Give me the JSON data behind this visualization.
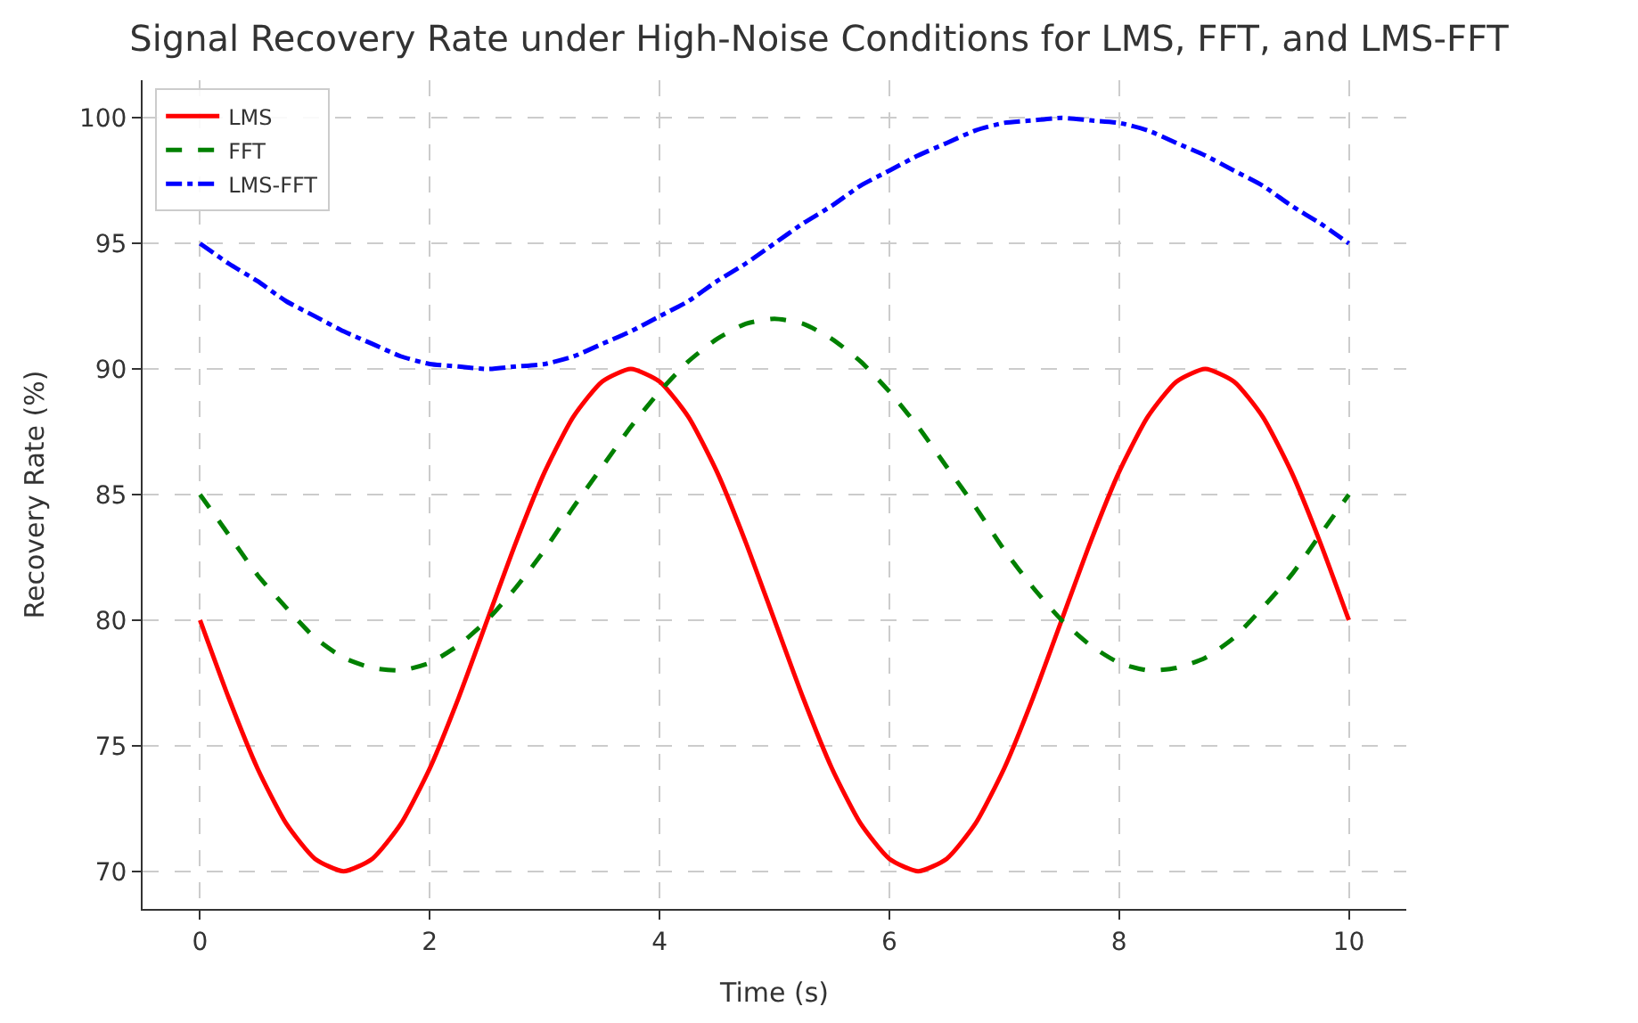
{
  "chart_data": {
    "type": "line",
    "title": "Signal Recovery Rate under High-Noise Conditions for LMS, FFT, and LMS-FFT",
    "xlabel": "Time (s)",
    "ylabel": "Recovery Rate (%)",
    "x": [
      0,
      0.25,
      0.5,
      0.75,
      1,
      1.25,
      1.5,
      1.75,
      2,
      2.25,
      2.5,
      2.75,
      3,
      3.25,
      3.5,
      3.75,
      4,
      4.25,
      4.5,
      4.75,
      5,
      5.25,
      5.5,
      5.75,
      6,
      6.25,
      6.5,
      6.75,
      7,
      7.25,
      7.5,
      7.75,
      8,
      8.25,
      8.5,
      8.75,
      9,
      9.25,
      9.5,
      9.75,
      10
    ],
    "series": [
      {
        "name": "LMS",
        "color": "#ff0000",
        "line_style": "solid",
        "values": [
          80,
          76.9,
          74.1,
          71.9,
          70.5,
          70,
          70.5,
          71.9,
          74.1,
          76.9,
          80,
          83.1,
          85.9,
          88.1,
          89.5,
          90,
          89.5,
          88.1,
          85.9,
          83.1,
          80,
          76.9,
          74.1,
          71.9,
          70.5,
          70,
          70.5,
          71.9,
          74.1,
          76.9,
          80,
          83.1,
          85.9,
          88.1,
          89.5,
          90,
          89.5,
          88.1,
          85.9,
          83.1,
          80
        ]
      },
      {
        "name": "FFT",
        "color": "#008000",
        "line_style": "dashed",
        "values": [
          85,
          83.4,
          81.8,
          80.5,
          79.3,
          78.5,
          78.1,
          78.0,
          78.3,
          79.0,
          80.0,
          81.3,
          82.8,
          84.5,
          86.1,
          87.7,
          89.1,
          90.3,
          91.2,
          91.8,
          92,
          91.8,
          91.2,
          90.3,
          89.1,
          87.7,
          86.1,
          84.5,
          82.8,
          81.3,
          80.0,
          79.0,
          78.3,
          78.0,
          78.1,
          78.5,
          79.3,
          80.5,
          81.8,
          83.4,
          85
        ]
      },
      {
        "name": "LMS-FFT",
        "color": "#0000ff",
        "line_style": "dashdot",
        "values": [
          95,
          94.2,
          93.5,
          92.7,
          92.1,
          91.5,
          91.0,
          90.5,
          90.2,
          90.1,
          90,
          90.1,
          90.2,
          90.5,
          91.0,
          91.5,
          92.1,
          92.7,
          93.5,
          94.2,
          95,
          95.8,
          96.5,
          97.3,
          97.9,
          98.5,
          99.0,
          99.5,
          99.8,
          99.9,
          100,
          99.9,
          99.8,
          99.5,
          99.0,
          98.5,
          97.9,
          97.3,
          96.5,
          95.8,
          95
        ]
      }
    ],
    "xlim": [
      -0.5,
      10.5
    ],
    "ylim": [
      68.5,
      101.5
    ],
    "xticks": [
      0,
      2,
      4,
      6,
      8,
      10
    ],
    "yticks": [
      70,
      75,
      80,
      85,
      90,
      95,
      100
    ],
    "grid": true,
    "legend": "top left"
  }
}
